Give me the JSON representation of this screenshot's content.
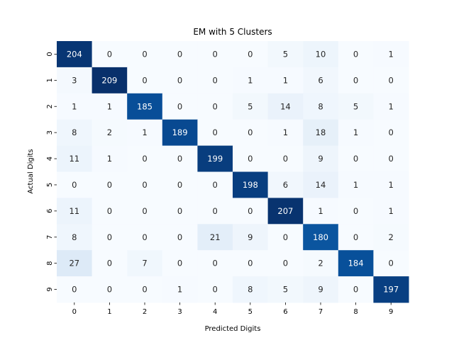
{
  "chart_data": {
    "type": "heatmap",
    "title": "EM with 5 Clusters",
    "xlabel": "Predicted Digits",
    "ylabel": "Actual Digits",
    "x_categories": [
      "0",
      "1",
      "2",
      "3",
      "4",
      "5",
      "6",
      "7",
      "8",
      "9"
    ],
    "y_categories": [
      "0",
      "1",
      "2",
      "3",
      "4",
      "5",
      "6",
      "7",
      "8",
      "9"
    ],
    "values": [
      [
        204,
        0,
        0,
        0,
        0,
        0,
        5,
        10,
        0,
        1
      ],
      [
        3,
        209,
        0,
        0,
        0,
        1,
        1,
        6,
        0,
        0
      ],
      [
        1,
        1,
        185,
        0,
        0,
        5,
        14,
        8,
        5,
        1
      ],
      [
        8,
        2,
        1,
        189,
        0,
        0,
        1,
        18,
        1,
        0
      ],
      [
        11,
        1,
        0,
        0,
        199,
        0,
        0,
        9,
        0,
        0
      ],
      [
        0,
        0,
        0,
        0,
        0,
        198,
        6,
        14,
        1,
        1
      ],
      [
        11,
        0,
        0,
        0,
        0,
        0,
        207,
        1,
        0,
        1
      ],
      [
        8,
        0,
        0,
        0,
        21,
        9,
        0,
        180,
        0,
        2
      ],
      [
        27,
        0,
        7,
        0,
        0,
        0,
        0,
        2,
        184,
        0
      ],
      [
        0,
        0,
        0,
        1,
        0,
        8,
        5,
        9,
        0,
        197
      ]
    ],
    "colormap": "Blues",
    "value_range": [
      0,
      209
    ],
    "colorbar": false,
    "grid": false
  }
}
